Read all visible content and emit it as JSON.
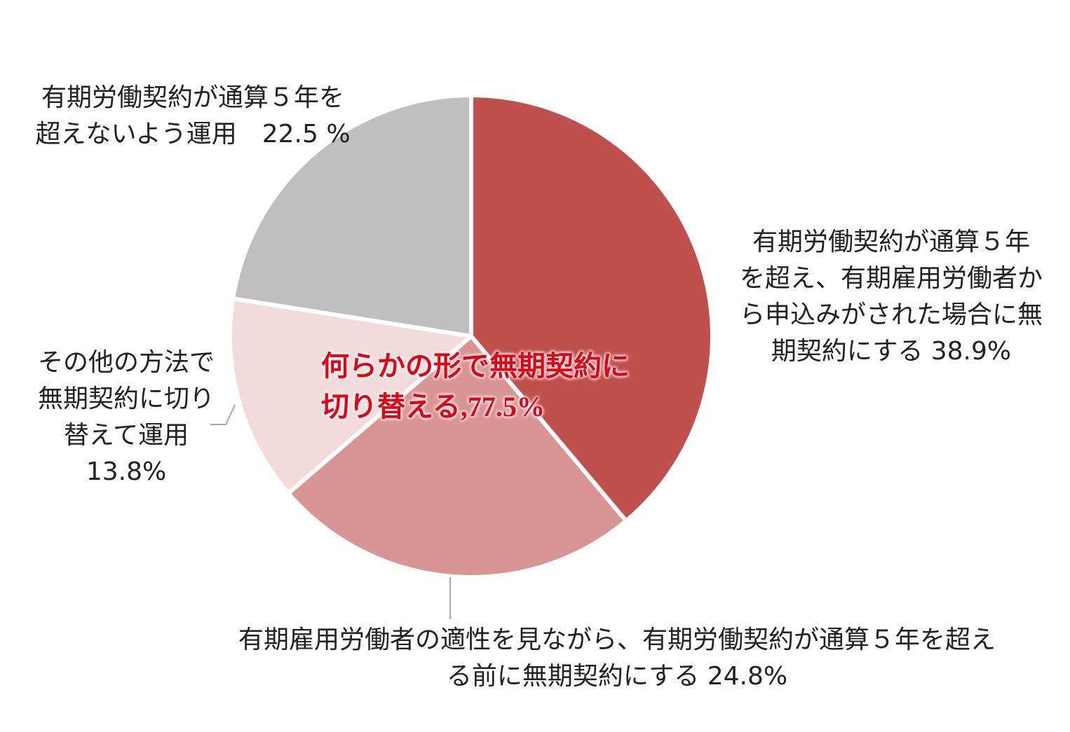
{
  "chart_data": {
    "type": "pie",
    "start": "12 o'clock",
    "direction": "clockwise",
    "slices": [
      {
        "label": "有期労働契約が通算５年を超え、有期雇用労働者から申込みがされた場合に無期契約にする",
        "value": 38.9,
        "color": "#c0504d"
      },
      {
        "label": "有期雇用労働者の適性を見ながら、有期労働契約が通算５年を超える前に無期契約にする",
        "value": 24.8,
        "color": "#d99594"
      },
      {
        "label": "その他の方法で無期契約に切り替えて運用",
        "value": 13.8,
        "color": "#f2dcdb"
      },
      {
        "label": "有期労働契約が通算５年を超えないよう運用",
        "value": 22.5,
        "color": "#bfbfbf"
      }
    ],
    "annotation": {
      "line1": "何らかの形で無期契約に",
      "line2_text": "切り替える",
      "line2_value": ",77.5%",
      "color": "#e60012"
    }
  },
  "labels": {
    "s1": [
      "有期労働契約が通算５年",
      "を超え、有期雇用労働者か",
      "ら申込みがされた場合に無",
      "期契約にする 38.9%"
    ],
    "s2": [
      "有期雇用労働者の適性を見ながら、有期労働契約が通算５年を超え",
      "る前に無期契約にする 24.8%"
    ],
    "s3": [
      "その他の方法で",
      "無期契約に切り",
      "替えて運用",
      "13.8%"
    ],
    "s4": [
      "有期労働契約が通算５年を",
      "超えないよう運用　22.5 %"
    ]
  }
}
